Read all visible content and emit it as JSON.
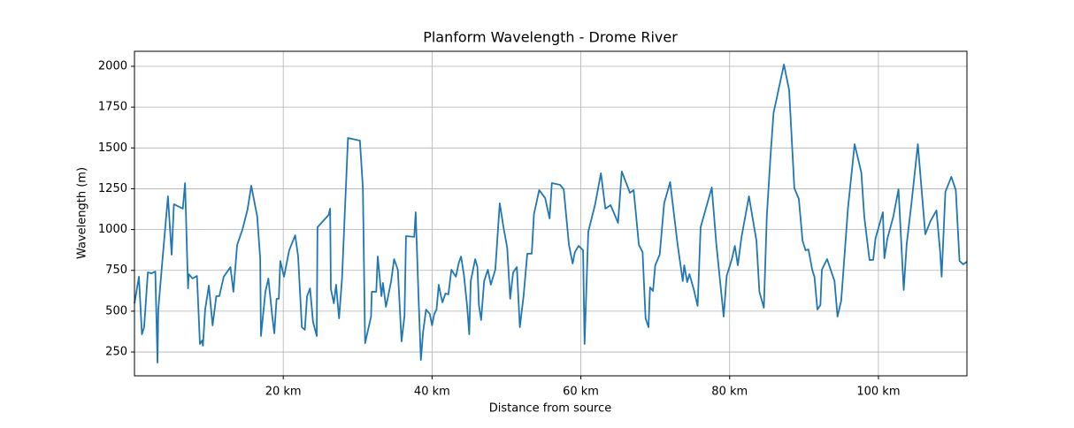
{
  "chart_data": {
    "type": "line",
    "title": "Planform Wavelength - Drome River",
    "xlabel": "Distance from source",
    "ylabel": "Wavelength (m)",
    "color": "#1f77b4",
    "grid": true,
    "xlim": [
      0,
      111.9
    ],
    "ylim": [
      104,
      2092
    ],
    "xticks": [
      {
        "value": 20,
        "label": "20 km"
      },
      {
        "value": 40,
        "label": "40 km"
      },
      {
        "value": 60,
        "label": "60 km"
      },
      {
        "value": 80,
        "label": "80 km"
      },
      {
        "value": 100,
        "label": "100 km"
      }
    ],
    "yticks": [
      250,
      500,
      750,
      1000,
      1250,
      1500,
      1750,
      2000
    ],
    "x": [
      0.0,
      0.6,
      1.0,
      1.3,
      1.8,
      2.3,
      2.8,
      3.1,
      3.2,
      3.7,
      4.5,
      5.0,
      5.3,
      6.5,
      6.8,
      7.2,
      7.3,
      7.8,
      8.4,
      8.8,
      9.1,
      9.2,
      9.5,
      10.0,
      10.5,
      11.0,
      11.4,
      12.0,
      12.9,
      13.3,
      13.8,
      14.5,
      15.2,
      15.7,
      16.5,
      16.9,
      17.0,
      17.6,
      18.0,
      18.5,
      18.8,
      19.1,
      19.4,
      19.6,
      20.1,
      20.8,
      21.6,
      22.0,
      22.5,
      22.9,
      23.2,
      23.6,
      24.0,
      24.5,
      24.6,
      26.1,
      26.3,
      26.4,
      26.8,
      27.1,
      27.5,
      27.9,
      28.7,
      30.3,
      30.7,
      31.0,
      31.8,
      31.9,
      32.5,
      32.7,
      33.2,
      33.4,
      33.8,
      34.1,
      34.5,
      34.9,
      35.4,
      35.9,
      36.3,
      36.5,
      37.6,
      37.8,
      38.2,
      38.5,
      38.8,
      39.2,
      39.7,
      40.0,
      40.3,
      40.6,
      40.9,
      41.2,
      41.4,
      41.8,
      42.2,
      42.6,
      43.2,
      43.6,
      43.9,
      44.3,
      44.7,
      45.0,
      45.2,
      45.8,
      46.1,
      46.3,
      46.6,
      47.0,
      47.5,
      47.9,
      48.5,
      49.1,
      49.6,
      50.1,
      50.5,
      50.9,
      51.4,
      51.8,
      52.3,
      52.8,
      53.4,
      53.7,
      54.4,
      55.2,
      55.8,
      56.1,
      57.2,
      57.7,
      58.4,
      58.9,
      59.2,
      59.7,
      60.3,
      60.5,
      61.0,
      61.9,
      62.7,
      63.3,
      64.0,
      65.0,
      65.5,
      66.6,
      67.1,
      67.8,
      68.3,
      68.7,
      69.1,
      69.3,
      69.7,
      70.0,
      70.6,
      71.2,
      72.0,
      73.0,
      73.7,
      73.9,
      74.3,
      74.6,
      75.2,
      75.7,
      76.1,
      77.6,
      78.2,
      79.2,
      79.6,
      80.3,
      80.7,
      81.1,
      81.6,
      82.6,
      83.0,
      83.6,
      84.0,
      84.6,
      85.0,
      85.5,
      85.9,
      87.3,
      88.0,
      88.7,
      89.3,
      89.8,
      90.2,
      90.6,
      91.1,
      91.4,
      91.8,
      92.2,
      92.4,
      93.1,
      93.7,
      94.1,
      94.5,
      95.0,
      95.9,
      96.8,
      97.7,
      98.1,
      98.8,
      99.3,
      99.6,
      100.6,
      100.8,
      101.2,
      102.0,
      102.7,
      103.4,
      103.8,
      104.4,
      105.3,
      106.3,
      107.0,
      107.8,
      108.3,
      108.5,
      109.0,
      109.8,
      110.4,
      110.9,
      111.4,
      111.9
    ],
    "values": [
      548,
      711,
      359,
      402,
      738,
      732,
      743,
      185,
      510,
      781,
      1204,
      846,
      1155,
      1128,
      1285,
      640,
      727,
      700,
      716,
      299,
      321,
      288,
      510,
      657,
      413,
      592,
      592,
      711,
      770,
      619,
      906,
      998,
      1123,
      1269,
      1079,
      824,
      348,
      619,
      700,
      478,
      364,
      576,
      576,
      808,
      711,
      873,
      965,
      835,
      402,
      386,
      592,
      640,
      435,
      348,
      1014,
      1090,
      1128,
      635,
      548,
      662,
      456,
      700,
      1561,
      1545,
      1258,
      304,
      467,
      619,
      619,
      835,
      592,
      673,
      527,
      592,
      684,
      819,
      754,
      315,
      473,
      960,
      955,
      1106,
      565,
      201,
      375,
      510,
      483,
      413,
      483,
      510,
      662,
      592,
      554,
      608,
      603,
      754,
      711,
      797,
      835,
      716,
      538,
      359,
      684,
      819,
      770,
      538,
      446,
      684,
      754,
      662,
      754,
      1161,
      1014,
      889,
      576,
      738,
      770,
      402,
      592,
      852,
      852,
      1095,
      1242,
      1193,
      1068,
      1285,
      1274,
      1247,
      906,
      792,
      862,
      900,
      873,
      299,
      987,
      1150,
      1345,
      1128,
      1150,
      1041,
      1356,
      1225,
      1242,
      906,
      862,
      456,
      402,
      646,
      624,
      781,
      846,
      1161,
      1291,
      911,
      684,
      781,
      678,
      727,
      630,
      532,
      1014,
      1258,
      917,
      467,
      716,
      819,
      900,
      781,
      955,
      1204,
      1095,
      933,
      619,
      521,
      1084,
      1453,
      1713,
      2011,
      1854,
      1253,
      1188,
      933,
      873,
      878,
      754,
      711,
      510,
      538,
      754,
      819,
      738,
      684,
      467,
      565,
      1128,
      1523,
      1350,
      1079,
      814,
      814,
      944,
      1106,
      824,
      944,
      1079,
      1247,
      630,
      911,
      1144,
      1523,
      971,
      1052,
      1117,
      862,
      711,
      1231,
      1323,
      1242,
      808,
      787,
      803
    ]
  }
}
